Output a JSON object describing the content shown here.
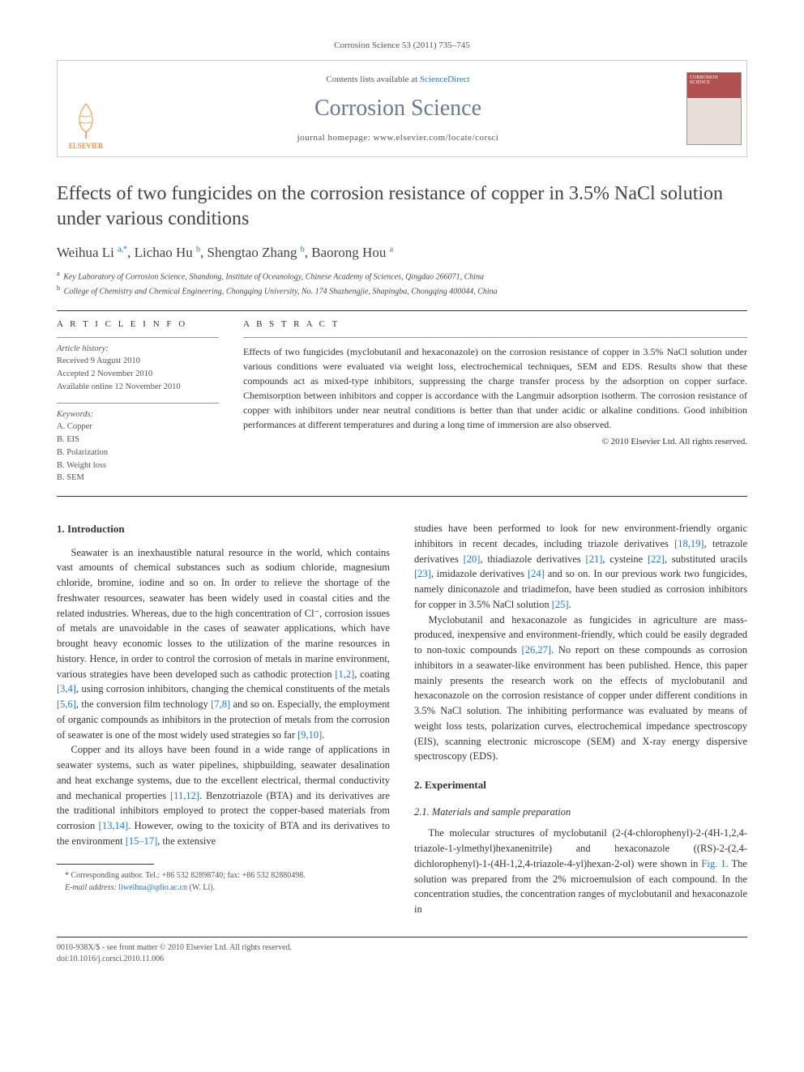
{
  "citation": "Corrosion Science 53 (2011) 735–745",
  "header": {
    "publisher_name": "ELSEVIER",
    "contents_prefix": "Contents lists available at ",
    "contents_link": "ScienceDirect",
    "journal_name": "Corrosion Science",
    "homepage_label": "journal homepage: www.elsevier.com/locate/corsci",
    "cover_title": "CORROSION SCIENCE"
  },
  "article": {
    "title": "Effects of two fungicides on the corrosion resistance of copper in 3.5% NaCl solution under various conditions",
    "authors_html": "Weihua Li <sup>a,*</sup>, Lichao Hu <sup>b</sup>, Shengtao Zhang <sup>b</sup>, Baorong Hou <sup>a</sup>",
    "affiliations": [
      {
        "sup": "a",
        "text": "Key Laboratory of Corrosion Science, Shandong, Institute of Oceanology, Chinese Academy of Sciences, Qingdao 266071, China"
      },
      {
        "sup": "b",
        "text": "College of Chemistry and Chemical Engineering, Chongqing University, No. 174 Shazhengjie, Shapingba, Chongqing 400044, China"
      }
    ]
  },
  "info": {
    "heading": "A R T I C L E   I N F O",
    "history_label": "Article history:",
    "history": [
      "Received 9 August 2010",
      "Accepted 2 November 2010",
      "Available online 12 November 2010"
    ],
    "keywords_label": "Keywords:",
    "keywords": [
      "A. Copper",
      "B. EIS",
      "B. Polarization",
      "B. Weight loss",
      "B. SEM"
    ]
  },
  "abstract": {
    "heading": "A B S T R A C T",
    "text": "Effects of two fungicides (myclobutanil and hexaconazole) on the corrosion resistance of copper in 3.5% NaCl solution under various conditions were evaluated via weight loss, electrochemical techniques, SEM and EDS. Results show that these compounds act as mixed-type inhibitors, suppressing the charge transfer process by the adsorption on copper surface. Chemisorption between inhibitors and copper is accordance with the Langmuir adsorption isotherm. The corrosion resistance of copper with inhibitors under near neutral conditions is better than that under acidic or alkaline conditions. Good inhibition performances at different temperatures and during a long time of immersion are also observed.",
    "copyright": "© 2010 Elsevier Ltd. All rights reserved."
  },
  "body": {
    "section1_heading": "1. Introduction",
    "intro_p1": "Seawater is an inexhaustible natural resource in the world, which contains vast amounts of chemical substances such as sodium chloride, magnesium chloride, bromine, iodine and so on. In order to relieve the shortage of the freshwater resources, seawater has been widely used in coastal cities and the related industries. Whereas, due to the high concentration of Cl⁻, corrosion issues of metals are unavoidable in the cases of seawater applications, which have brought heavy economic losses to the utilization of the marine resources in history. Hence, in order to control the corrosion of metals in marine environment, various strategies have been developed such as cathodic protection [1,2], coating [3,4], using corrosion inhibitors, changing the chemical constituents of the metals [5,6], the conversion film technology [7,8] and so on. Especially, the employment of organic compounds as inhibitors in the protection of metals from the corrosion of seawater is one of the most widely used strategies so far [9,10].",
    "intro_p2": "Copper and its alloys have been found in a wide range of applications in seawater systems, such as water pipelines, shipbuilding, seawater desalination and heat exchange systems, due to the excellent electrical, thermal conductivity and mechanical properties [11,12]. Benzotriazole (BTA) and its derivatives are the traditional inhibitors employed to protect the copper-based materials from corrosion [13,14]. However, owing to the toxicity of BTA and its derivatives to the environment [15–17], the extensive",
    "intro_p3": "studies have been performed to look for new environment-friendly organic inhibitors in recent decades, including triazole derivatives [18,19], tetrazole derivatives [20], thiadiazole derivatives [21], cysteine [22], substituted uracils [23], imidazole derivatives [24] and so on. In our previous work two fungicides, namely diniconazole and triadimefon, have been studied as corrosion inhibitors for copper in 3.5% NaCl solution [25].",
    "intro_p4": "Myclobutanil and hexaconazole as fungicides in agriculture are mass-produced, inexpensive and environment-friendly, which could be easily degraded to non-toxic compounds [26,27]. No report on these compounds as corrosion inhibitors in a seawater-like environment has been published. Hence, this paper mainly presents the research work on the effects of myclobutanil and hexaconazole on the corrosion resistance of copper under different conditions in 3.5% NaCl solution. The inhibiting performance was evaluated by means of weight loss tests, polarization curves, electrochemical impedance spectroscopy (EIS), scanning electronic microscope (SEM) and X-ray energy dispersive spectroscopy (EDS).",
    "section2_heading": "2. Experimental",
    "section21_heading": "2.1. Materials and sample preparation",
    "exp_p1": "The molecular structures of myclobutanil (2-(4-chlorophenyl)-2-(4H-1,2,4-triazole-1-ylmethyl)hexanenitrile) and hexaconazole ((RS)-2-(2,4-dichlorophenyl)-1-(4H-1,2,4-triazole-4-yl)hexan-2-ol) were shown in Fig. 1. The solution was prepared from the 2% microemulsion of each compound. In the concentration studies, the concentration ranges of myclobutanil and hexaconazole in"
  },
  "footnote": {
    "corresponding": "* Corresponding author. Tel.: +86 532 82898740; fax: +86 532 82880498.",
    "email_label": "E-mail address:",
    "email": "liweihua@qdio.ac.cn",
    "email_owner": "(W. Li)."
  },
  "bottom": {
    "line1": "0010-938X/$ - see front matter © 2010 Elsevier Ltd. All rights reserved.",
    "line2": "doi:10.1016/j.corsci.2010.11.006"
  },
  "refs": {
    "r1": "[1,2]",
    "r2": "[3,4]",
    "r3": "[5,6]",
    "r4": "[7,8]",
    "r5": "[9,10]",
    "r6": "[11,12]",
    "r7": "[13,14]",
    "r8": "[15–17]",
    "r9": "[18,19]",
    "r10": "[20]",
    "r11": "[21]",
    "r12": "[22]",
    "r13": "[23]",
    "r14": "[24]",
    "r15": "[25]",
    "r16": "[26,27]",
    "fig1": "Fig. 1"
  }
}
